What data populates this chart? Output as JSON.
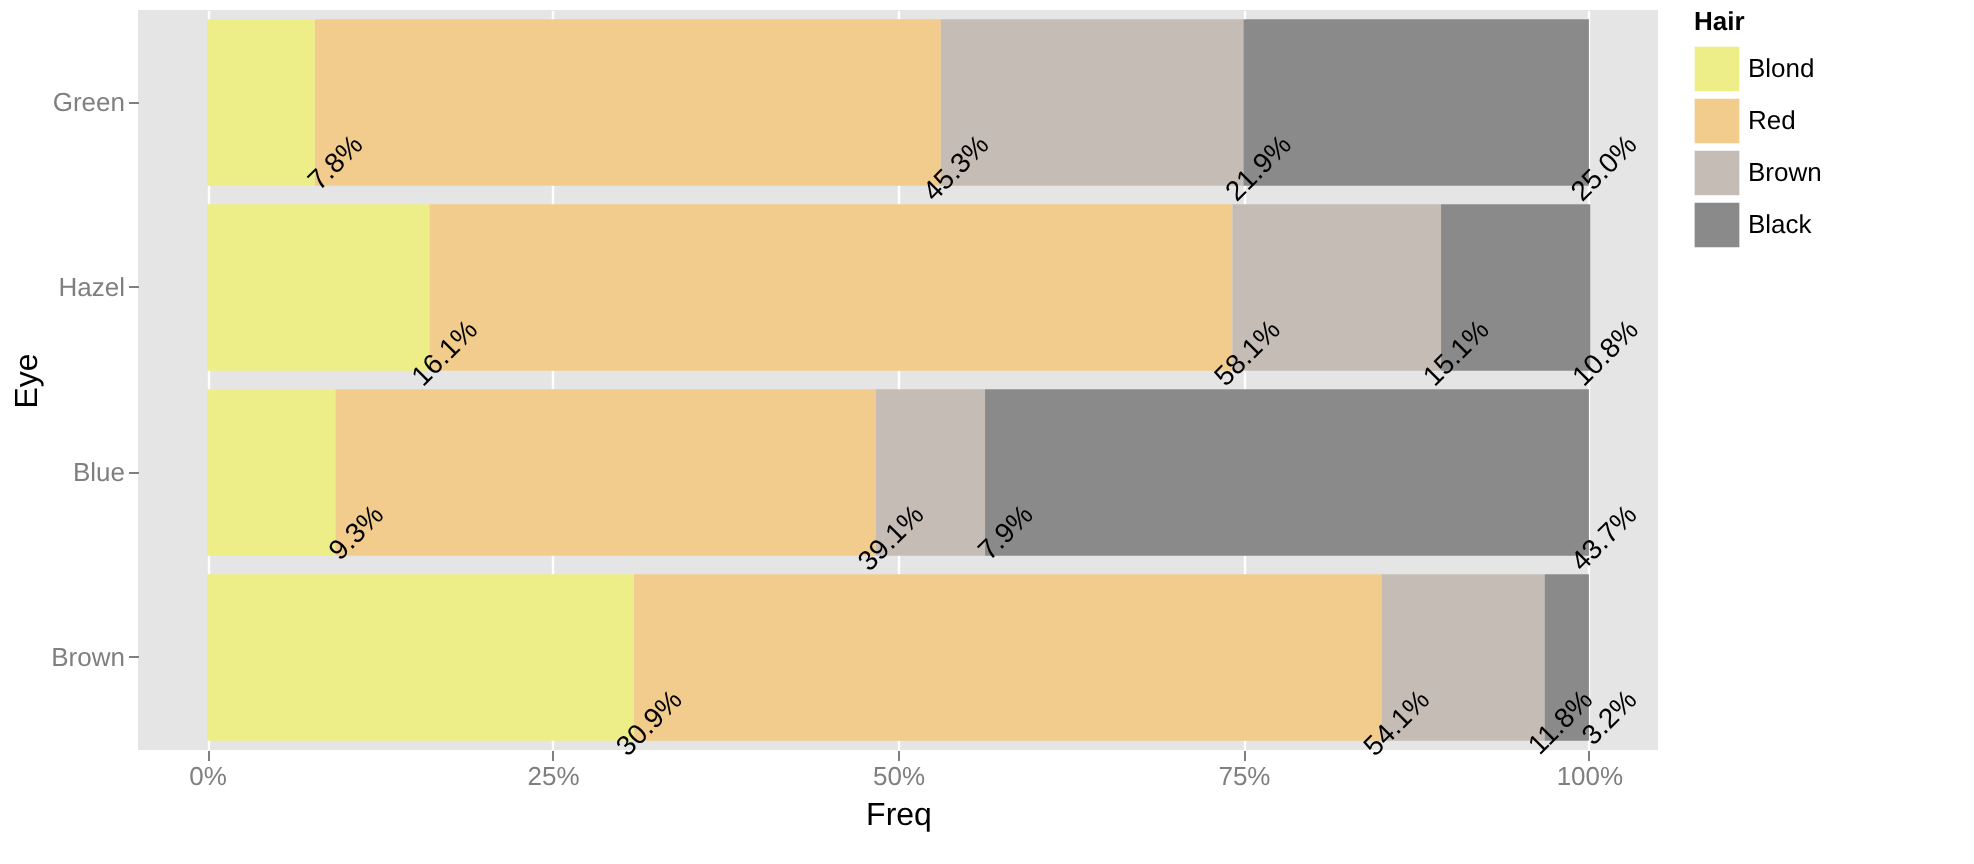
{
  "chart_data": {
    "type": "bar",
    "orientation": "horizontal",
    "stacked": true,
    "xlabel": "Freq",
    "ylabel": "Eye",
    "legend_title": "Hair",
    "legend": "right",
    "grid": "x",
    "categories": [
      "Green",
      "Hazel",
      "Blue",
      "Brown"
    ],
    "series": [
      {
        "name": "Blond",
        "color": "#eeee88",
        "values": [
          7.8,
          16.1,
          9.3,
          30.9
        ],
        "value_labels": [
          "7.8%",
          "16.1%",
          "9.3%",
          "30.9%"
        ]
      },
      {
        "name": "Red",
        "color": "#f1cc8c",
        "values": [
          45.3,
          58.1,
          39.1,
          54.1
        ],
        "value_labels": [
          "45.3%",
          "58.1%",
          "39.1%",
          "54.1%"
        ]
      },
      {
        "name": "Brown",
        "color": "#c5bcb5",
        "values": [
          21.9,
          15.1,
          7.9,
          11.8
        ],
        "value_labels": [
          "21.9%",
          "15.1%",
          "7.9%",
          "11.8%"
        ]
      },
      {
        "name": "Black",
        "color": "#8a8a8a",
        "values": [
          25.0,
          10.8,
          43.7,
          3.2
        ],
        "value_labels": [
          "25.0%",
          "10.8%",
          "43.7%",
          "3.2%"
        ]
      }
    ],
    "xlim": [
      -5,
      105
    ],
    "xticks": [
      {
        "value": 0,
        "label": "0%"
      },
      {
        "value": 25,
        "label": "25%"
      },
      {
        "value": 50,
        "label": "50%"
      },
      {
        "value": 75,
        "label": "75%"
      },
      {
        "value": 100,
        "label": "100%"
      }
    ]
  }
}
